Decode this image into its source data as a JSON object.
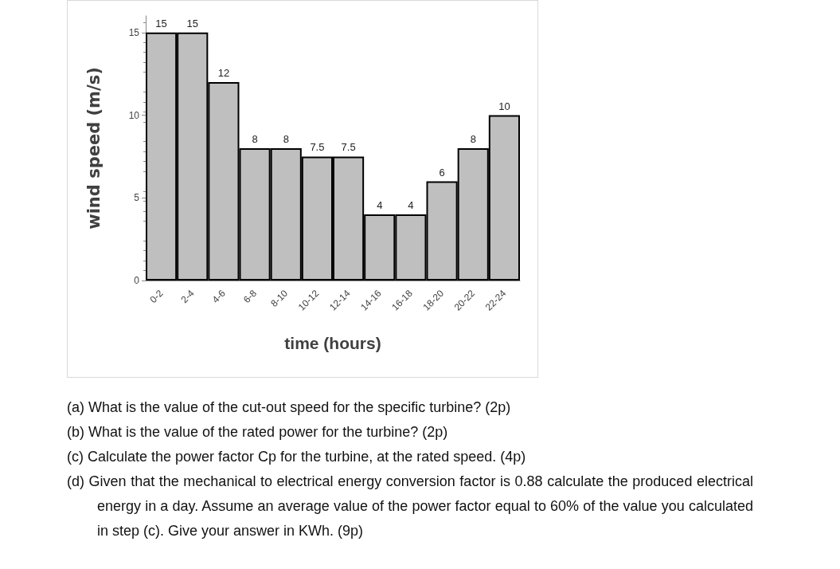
{
  "chart_data": {
    "type": "bar",
    "xlabel": "time (hours)",
    "ylabel": "wind speed (m/s)",
    "categories": [
      "0-2",
      "2-4",
      "4-6",
      "6-8",
      "8-10",
      "10-12",
      "12-14",
      "14-16",
      "16-18",
      "18-20",
      "20-22",
      "22-24"
    ],
    "values": [
      15,
      15,
      12,
      8,
      8,
      7.5,
      7.5,
      4,
      4,
      6,
      8,
      10
    ],
    "color": "#bfbfbf",
    "ylim": [
      0,
      16
    ],
    "yticks": [
      0,
      5,
      10,
      15
    ],
    "grid": false,
    "data_labels": true,
    "annotations": [
      "(a) What is the value of the cut-out speed for the specific turbine? (2p)",
      "(b) What is the value of the rated power for the turbine? (2p)",
      "(c) Calculate the power factor Cp for the turbine, at the rated speed. (4p)",
      "(d) Given that the mechanical to electrical energy conversion factor is 0.88 calculate the produced electrical energy in a day. Assume an average value of the power factor equal to 60% of the value you calculated in step (c). Give your answer in KWh. (9p)"
    ]
  }
}
